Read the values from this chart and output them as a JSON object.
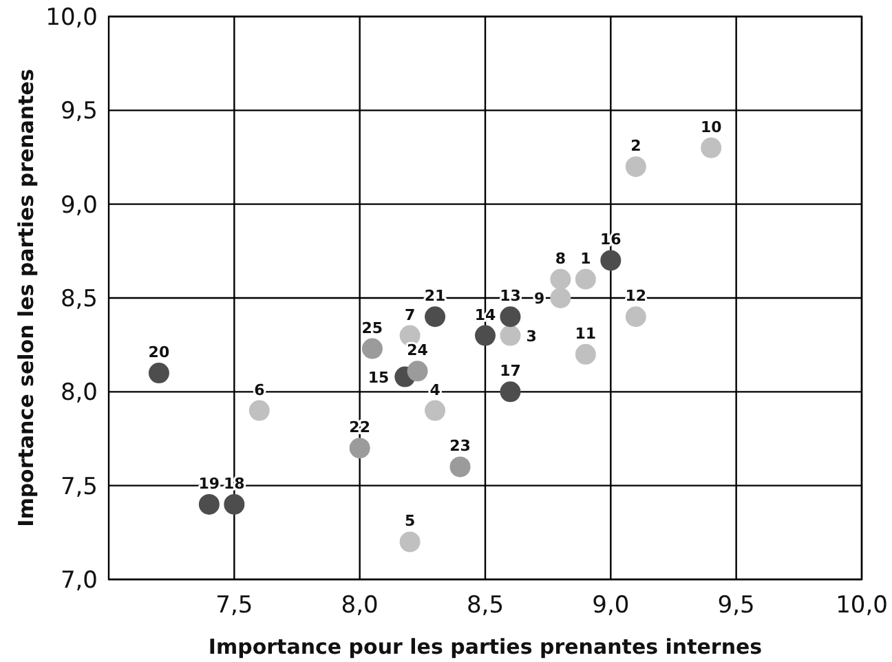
{
  "chart_data": {
    "type": "scatter",
    "xlabel": "Importance pour les parties prenantes internes",
    "ylabel": "Importance selon les parties prenantes",
    "xlim": [
      7,
      10
    ],
    "xticks": [
      {
        "value": 7.5,
        "label": "7,5"
      },
      {
        "value": 8,
        "label": "8,0"
      },
      {
        "value": 8.5,
        "label": "8,5"
      },
      {
        "value": 9,
        "label": "9,0"
      },
      {
        "value": 9.5,
        "label": "9,5"
      },
      {
        "value": 10,
        "label": "10,0"
      }
    ],
    "ylim": [
      7,
      10
    ],
    "yticks": [
      {
        "value": 7,
        "label": "7,0"
      },
      {
        "value": 7.5,
        "label": "7,5"
      },
      {
        "value": 8,
        "label": "8,0"
      },
      {
        "value": 8.5,
        "label": "8,5"
      },
      {
        "value": 9,
        "label": "9,0"
      },
      {
        "value": 9.5,
        "label": "9,5"
      },
      {
        "value": 10,
        "label": "10,0"
      }
    ],
    "grid": true,
    "marker": "circle",
    "series": [
      {
        "color": "#c0c0c0",
        "x": [
          8.9,
          9.1,
          8.6,
          8.3,
          8.2,
          7.6,
          8.2,
          8.8,
          8.8,
          9.4,
          8.9,
          9.1
        ],
        "values": [
          8.6,
          9.2,
          8.3,
          7.9,
          7.2,
          7.9,
          8.3,
          8.6,
          8.5,
          9.3,
          8.2,
          8.4
        ]
      },
      {
        "color": "#4d4d4d",
        "x": [
          8.6,
          8.5,
          8.18,
          9.0,
          8.6,
          7.5,
          7.4,
          7.2,
          8.3
        ],
        "values": [
          8.4,
          8.3,
          8.08,
          8.7,
          8.0,
          7.4,
          7.4,
          8.1,
          8.4
        ]
      },
      {
        "color": "#9b9b9b",
        "x": [
          8.0,
          8.4,
          8.23,
          8.05
        ],
        "values": [
          7.7,
          7.6,
          8.11,
          8.23
        ]
      }
    ],
    "annotations": [
      {
        "text": "1",
        "x": 8.9,
        "y": 8.6
      },
      {
        "text": "2",
        "x": 9.1,
        "y": 9.2
      },
      {
        "text": "3",
        "x": 8.6,
        "y": 8.3
      },
      {
        "text": "4",
        "x": 8.3,
        "y": 7.9
      },
      {
        "text": "5",
        "x": 8.2,
        "y": 7.2
      },
      {
        "text": "6",
        "x": 7.6,
        "y": 7.9
      },
      {
        "text": "7",
        "x": 8.2,
        "y": 8.3
      },
      {
        "text": "8",
        "x": 8.8,
        "y": 8.6
      },
      {
        "text": "9",
        "x": 8.8,
        "y": 8.5
      },
      {
        "text": "10",
        "x": 9.4,
        "y": 9.3
      },
      {
        "text": "11",
        "x": 8.9,
        "y": 8.2
      },
      {
        "text": "12",
        "x": 9.1,
        "y": 8.4
      },
      {
        "text": "13",
        "x": 8.6,
        "y": 8.4
      },
      {
        "text": "14",
        "x": 8.5,
        "y": 8.3
      },
      {
        "text": "15",
        "x": 8.18,
        "y": 8.08
      },
      {
        "text": "16",
        "x": 9.0,
        "y": 8.7
      },
      {
        "text": "17",
        "x": 8.6,
        "y": 8.0
      },
      {
        "text": "18",
        "x": 7.5,
        "y": 7.4
      },
      {
        "text": "19",
        "x": 7.4,
        "y": 7.4
      },
      {
        "text": "20",
        "x": 7.2,
        "y": 8.1
      },
      {
        "text": "21",
        "x": 8.3,
        "y": 8.4
      },
      {
        "text": "22",
        "x": 8.0,
        "y": 7.7
      },
      {
        "text": "23",
        "x": 8.4,
        "y": 7.6
      },
      {
        "text": "24",
        "x": 8.23,
        "y": 8.11
      },
      {
        "text": "25",
        "x": 8.05,
        "y": 8.23
      }
    ]
  }
}
